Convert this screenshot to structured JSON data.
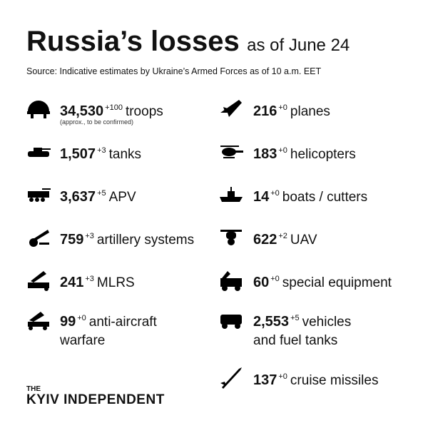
{
  "header": {
    "title": "Russia’s losses",
    "date": "as of June 24",
    "source": "Source: Indicative estimates by Ukraine’s Armed Forces as of 10 a.m. EET"
  },
  "left": [
    {
      "value": "34,530",
      "change": "+100",
      "label": "troops",
      "note": "(approx., to be confirmed)"
    },
    {
      "value": "1,507",
      "change": "+3",
      "label": "tanks"
    },
    {
      "value": "3,637",
      "change": "+5",
      "label": "APV"
    },
    {
      "value": "759",
      "change": "+3",
      "label": "artillery systems"
    },
    {
      "value": "241",
      "change": "+3",
      "label": "MLRS"
    },
    {
      "value": "99",
      "change": "+0",
      "label": "anti-aircraft warfare"
    }
  ],
  "right": [
    {
      "value": "216",
      "change": "+0",
      "label": "planes"
    },
    {
      "value": "183",
      "change": "+0",
      "label": "helicopters"
    },
    {
      "value": "14",
      "change": "+0",
      "label": "boats / cutters"
    },
    {
      "value": "622",
      "change": "+2",
      "label": "UAV"
    },
    {
      "value": "60",
      "change": "+0",
      "label": "special equipment"
    },
    {
      "value": "2,553",
      "change": "+5",
      "label": "vehicles and fuel tanks"
    },
    {
      "value": "137",
      "change": "+0",
      "label": "cruise missiles"
    }
  ],
  "footer": {
    "brand_top": "THE",
    "brand": "KYIV INDEPENDENT"
  }
}
